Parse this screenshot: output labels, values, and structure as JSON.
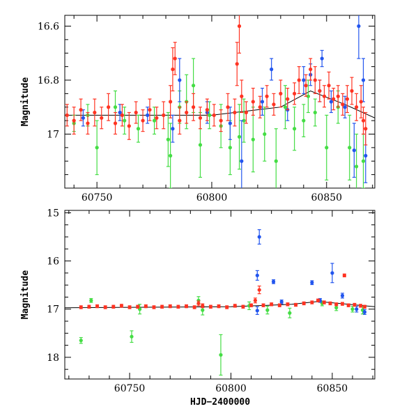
{
  "chart_data": [
    {
      "type": "scatter",
      "title": "",
      "xlabel": "",
      "ylabel": "Magnitude",
      "xlim": [
        60736,
        60871
      ],
      "ylim": [
        17.2,
        16.56
      ],
      "y_inverted": true,
      "xticks": [
        60750,
        60800,
        60850
      ],
      "xtick_labels": [
        "60750",
        "60800",
        "60850"
      ],
      "yticks": [
        16.6,
        16.8,
        17.0
      ],
      "ytick_labels": [
        "16.6",
        "16.8",
        "17"
      ],
      "trend": [
        [
          60736,
          16.93
        ],
        [
          60800,
          16.93
        ],
        [
          60830,
          16.9
        ],
        [
          60843,
          16.84
        ],
        [
          60858,
          16.89
        ],
        [
          60871,
          16.94
        ]
      ],
      "series": [
        {
          "color": "#44dd44",
          "points": [
            [
              60740,
              16.96,
              0.03
            ],
            [
              60746,
              16.93,
              0.04
            ],
            [
              60750,
              17.05,
              0.1
            ],
            [
              60758,
              16.9,
              0.06
            ],
            [
              60762,
              16.95,
              0.05
            ],
            [
              60768,
              16.98,
              0.05
            ],
            [
              60775,
              16.95,
              0.05
            ],
            [
              60781,
              17.02,
              0.1
            ],
            [
              60782,
              17.08,
              0.12
            ],
            [
              60786,
              16.9,
              0.06
            ],
            [
              60789,
              16.88,
              0.1
            ],
            [
              60792,
              16.82,
              0.1
            ],
            [
              60795,
              17.04,
              0.12
            ],
            [
              60799,
              16.93,
              0.05
            ],
            [
              60804,
              16.97,
              0.08
            ],
            [
              60808,
              17.05,
              0.1
            ],
            [
              60812,
              17.01,
              0.12
            ],
            [
              60814,
              16.95,
              0.08
            ],
            [
              60818,
              17.02,
              0.12
            ],
            [
              60823,
              17.0,
              0.1
            ],
            [
              60828,
              17.1,
              0.12
            ],
            [
              60832,
              16.9,
              0.08
            ],
            [
              60836,
              16.98,
              0.08
            ],
            [
              60840,
              16.95,
              0.06
            ],
            [
              60842,
              16.86,
              0.06
            ],
            [
              60845,
              16.92,
              0.05
            ],
            [
              60850,
              17.05,
              0.12
            ],
            [
              60855,
              16.9,
              0.06
            ],
            [
              60860,
              17.05,
              0.12
            ],
            [
              60863,
              17.12,
              0.12
            ],
            [
              60866,
              17.1,
              0.1
            ]
          ]
        },
        {
          "color": "#2255ee",
          "points": [
            [
              60744,
              16.94,
              0.03
            ],
            [
              60760,
              16.92,
              0.03
            ],
            [
              60772,
              16.93,
              0.03
            ],
            [
              60783,
              16.98,
              0.05
            ],
            [
              60786,
              16.8,
              0.08
            ],
            [
              60798,
              16.92,
              0.04
            ],
            [
              60808,
              16.96,
              0.06
            ],
            [
              60813,
              17.1,
              0.15
            ],
            [
              60822,
              16.88,
              0.05
            ],
            [
              60826,
              16.76,
              0.04
            ],
            [
              60833,
              16.91,
              0.04
            ],
            [
              60840,
              16.8,
              0.05
            ],
            [
              60843,
              16.78,
              0.04
            ],
            [
              60847,
              16.84,
              0.04
            ],
            [
              60848,
              16.72,
              0.03
            ],
            [
              60852,
              16.88,
              0.04
            ],
            [
              60858,
              16.9,
              0.04
            ],
            [
              60862,
              17.06,
              0.1
            ],
            [
              60864,
              16.6,
              0.12
            ],
            [
              60866,
              16.8,
              0.08
            ],
            [
              60867,
              17.08,
              0.1
            ]
          ]
        },
        {
          "color": "#ff3322",
          "points": [
            [
              60737,
              16.93,
              0.04
            ],
            [
              60740,
              16.95,
              0.05
            ],
            [
              60743,
              16.91,
              0.04
            ],
            [
              60746,
              16.96,
              0.04
            ],
            [
              60749,
              16.92,
              0.05
            ],
            [
              60752,
              16.94,
              0.04
            ],
            [
              60755,
              16.9,
              0.05
            ],
            [
              60758,
              16.96,
              0.04
            ],
            [
              60761,
              16.93,
              0.04
            ],
            [
              60764,
              16.97,
              0.05
            ],
            [
              60767,
              16.92,
              0.04
            ],
            [
              60770,
              16.95,
              0.04
            ],
            [
              60773,
              16.91,
              0.04
            ],
            [
              60776,
              16.94,
              0.04
            ],
            [
              60779,
              16.93,
              0.05
            ],
            [
              60782,
              16.88,
              0.06
            ],
            [
              60783,
              16.76,
              0.08
            ],
            [
              60784,
              16.72,
              0.06
            ],
            [
              60786,
              16.95,
              0.05
            ],
            [
              60789,
              16.92,
              0.04
            ],
            [
              60792,
              16.9,
              0.05
            ],
            [
              60795,
              16.94,
              0.04
            ],
            [
              60798,
              16.91,
              0.04
            ],
            [
              60801,
              16.93,
              0.04
            ],
            [
              60804,
              16.95,
              0.04
            ],
            [
              60807,
              16.9,
              0.05
            ],
            [
              60810,
              16.92,
              0.05
            ],
            [
              60811,
              16.74,
              0.08
            ],
            [
              60812,
              16.6,
              0.1
            ],
            [
              60813,
              16.86,
              0.06
            ],
            [
              60815,
              16.92,
              0.04
            ],
            [
              60818,
              16.88,
              0.05
            ],
            [
              60821,
              16.9,
              0.04
            ],
            [
              60824,
              16.86,
              0.04
            ],
            [
              60827,
              16.89,
              0.04
            ],
            [
              60830,
              16.85,
              0.05
            ],
            [
              60833,
              16.87,
              0.04
            ],
            [
              60836,
              16.85,
              0.04
            ],
            [
              60838,
              16.8,
              0.05
            ],
            [
              60841,
              16.82,
              0.04
            ],
            [
              60843,
              16.76,
              0.04
            ],
            [
              60845,
              16.8,
              0.05
            ],
            [
              60847,
              16.84,
              0.04
            ],
            [
              60849,
              16.86,
              0.04
            ],
            [
              60851,
              16.82,
              0.05
            ],
            [
              60853,
              16.87,
              0.04
            ],
            [
              60855,
              16.86,
              0.04
            ],
            [
              60857,
              16.89,
              0.04
            ],
            [
              60859,
              16.87,
              0.05
            ],
            [
              60861,
              16.84,
              0.05
            ],
            [
              60863,
              16.9,
              0.05
            ],
            [
              60865,
              16.88,
              0.06
            ],
            [
              60866,
              16.95,
              0.05
            ],
            [
              60867,
              16.98,
              0.06
            ]
          ]
        }
      ]
    },
    {
      "type": "scatter",
      "title": "",
      "xlabel": "HJD−2400000",
      "ylabel": "Magnitude",
      "xlim": [
        60718,
        60871
      ],
      "ylim": [
        18.45,
        14.95
      ],
      "y_inverted": true,
      "xticks": [
        60750,
        60800,
        60850
      ],
      "xtick_labels": [
        "60750",
        "60800",
        "60850"
      ],
      "yticks": [
        15,
        16,
        17,
        18
      ],
      "ytick_labels": [
        "15",
        "16",
        "17",
        "18"
      ],
      "trend": [
        [
          60718,
          16.97
        ],
        [
          60800,
          16.95
        ],
        [
          60830,
          16.9
        ],
        [
          60843,
          16.84
        ],
        [
          60858,
          16.9
        ],
        [
          60871,
          16.95
        ]
      ],
      "series": [
        {
          "color": "#44dd44",
          "points": [
            [
              60726,
              17.65,
              0.06
            ],
            [
              60731,
              16.82,
              0.04
            ],
            [
              60751,
              17.57,
              0.12
            ],
            [
              60755,
              17.0,
              0.1
            ],
            [
              60784,
              16.82,
              0.08
            ],
            [
              60786,
              17.02,
              0.1
            ],
            [
              60795,
              17.95,
              0.42
            ],
            [
              60809,
              16.93,
              0.08
            ],
            [
              60818,
              17.02,
              0.08
            ],
            [
              60829,
              17.08,
              0.1
            ],
            [
              60845,
              16.88,
              0.05
            ],
            [
              60852,
              16.97,
              0.06
            ],
            [
              60860,
              17.0,
              0.06
            ],
            [
              60865,
              17.02,
              0.08
            ]
          ]
        },
        {
          "color": "#2255ee",
          "points": [
            [
              60813,
              16.3,
              0.1
            ],
            [
              60814,
              15.5,
              0.15
            ],
            [
              60821,
              16.43,
              0.04
            ],
            [
              60840,
              16.45,
              0.04
            ],
            [
              60850,
              16.25,
              0.2
            ],
            [
              60855,
              16.72,
              0.05
            ],
            [
              60813,
              17.03,
              0.08
            ],
            [
              60825,
              16.85,
              0.04
            ],
            [
              60844,
              16.82,
              0.04
            ],
            [
              60862,
              17.0,
              0.06
            ],
            [
              60866,
              17.06,
              0.05
            ]
          ]
        },
        {
          "color": "#ff3322",
          "points": [
            [
              60726,
              16.96,
              0.03
            ],
            [
              60730,
              16.95,
              0.03
            ],
            [
              60734,
              16.94,
              0.03
            ],
            [
              60738,
              16.96,
              0.03
            ],
            [
              60742,
              16.95,
              0.03
            ],
            [
              60746,
              16.93,
              0.03
            ],
            [
              60750,
              16.96,
              0.03
            ],
            [
              60754,
              16.95,
              0.03
            ],
            [
              60758,
              16.94,
              0.03
            ],
            [
              60762,
              16.96,
              0.03
            ],
            [
              60766,
              16.95,
              0.03
            ],
            [
              60770,
              16.94,
              0.03
            ],
            [
              60774,
              16.95,
              0.03
            ],
            [
              60778,
              16.94,
              0.03
            ],
            [
              60782,
              16.96,
              0.03
            ],
            [
              60784,
              16.88,
              0.05
            ],
            [
              60786,
              16.93,
              0.04
            ],
            [
              60790,
              16.95,
              0.03
            ],
            [
              60794,
              16.94,
              0.03
            ],
            [
              60798,
              16.96,
              0.03
            ],
            [
              60802,
              16.93,
              0.03
            ],
            [
              60806,
              16.95,
              0.03
            ],
            [
              60810,
              16.92,
              0.03
            ],
            [
              60812,
              16.82,
              0.05
            ],
            [
              60814,
              16.6,
              0.08
            ],
            [
              60816,
              16.92,
              0.03
            ],
            [
              60820,
              16.9,
              0.03
            ],
            [
              60824,
              16.92,
              0.03
            ],
            [
              60828,
              16.9,
              0.03
            ],
            [
              60832,
              16.91,
              0.03
            ],
            [
              60836,
              16.88,
              0.03
            ],
            [
              60840,
              16.86,
              0.03
            ],
            [
              60843,
              16.82,
              0.03
            ],
            [
              60846,
              16.86,
              0.03
            ],
            [
              60849,
              16.88,
              0.03
            ],
            [
              60852,
              16.9,
              0.03
            ],
            [
              60855,
              16.89,
              0.03
            ],
            [
              60856,
              16.3,
              0.03
            ],
            [
              60858,
              16.92,
              0.03
            ],
            [
              60861,
              16.91,
              0.03
            ],
            [
              60864,
              16.93,
              0.03
            ],
            [
              60866,
              16.95,
              0.03
            ]
          ]
        }
      ]
    }
  ]
}
